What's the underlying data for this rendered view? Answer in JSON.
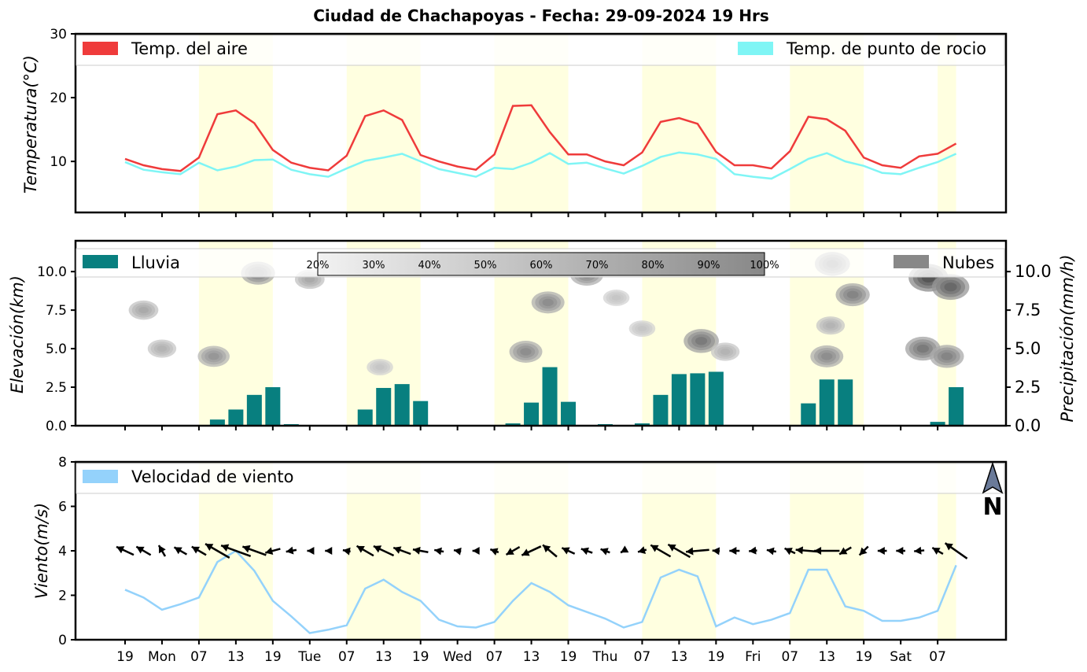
{
  "title": "Ciudad de Chachapoyas   -   Fecha: 29-09-2024 19 Hrs",
  "colors": {
    "air_temp": "#ef3b3b",
    "dew_point": "#7ff5f5",
    "rain": "#087f7f",
    "clouds": "#888888",
    "wind_speed": "#94d2fb",
    "daylight_band": "#ffffe0"
  },
  "icons": {
    "north_arrow": "north-arrow-icon"
  },
  "north_label": "N",
  "chart_data": [
    {
      "type": "line",
      "panel": "temperature",
      "ylabel": "Temperatura(°C)",
      "ylim": [
        2,
        30
      ],
      "yticks": [
        "10",
        "20",
        "30"
      ],
      "x_tick_labels": [
        "19",
        "Mon",
        "07",
        "13",
        "19",
        "Tue",
        "07",
        "13",
        "19",
        "Wed",
        "07",
        "13",
        "19",
        "Thu",
        "07",
        "13",
        "19",
        "Fri",
        "07",
        "13",
        "19",
        "Sat",
        "07"
      ],
      "grid": false,
      "legend": "top",
      "series": [
        {
          "name": "Temp. del aire",
          "values": [
            10.4,
            9.4,
            8.8,
            8.5,
            10.6,
            17.4,
            18.0,
            16.0,
            11.8,
            9.8,
            9.0,
            8.6,
            10.9,
            17.1,
            18.0,
            16.5,
            11.0,
            10.0,
            9.2,
            8.7,
            11.1,
            18.7,
            18.8,
            14.6,
            11.1,
            11.1,
            10.0,
            9.4,
            11.4,
            16.2,
            16.8,
            15.9,
            11.5,
            9.4,
            9.4,
            8.9,
            11.6,
            17.0,
            16.6,
            14.8,
            10.6,
            9.4,
            9.0,
            10.8,
            11.2,
            12.8
          ]
        },
        {
          "name": "Temp. de punto de rocio",
          "values": [
            9.9,
            8.7,
            8.3,
            8.0,
            9.8,
            8.6,
            9.2,
            10.2,
            10.3,
            8.7,
            8.0,
            7.6,
            8.9,
            10.1,
            10.6,
            11.2,
            10.0,
            8.8,
            8.2,
            7.6,
            9.0,
            8.8,
            9.8,
            11.3,
            9.6,
            9.8,
            8.9,
            8.1,
            9.3,
            10.7,
            11.4,
            11.1,
            10.4,
            8.0,
            7.6,
            7.3,
            8.8,
            10.4,
            11.3,
            10.0,
            9.3,
            8.2,
            8.0,
            9.0,
            9.9,
            11.2
          ]
        }
      ]
    },
    {
      "type": "bar",
      "panel": "rain_clouds",
      "ylabel_left": "Elevación(km)",
      "ylabel_right": "Precipitación(mm/h)",
      "ylim": [
        0,
        12
      ],
      "yticks_left": [
        "0.0",
        "2.5",
        "5.0",
        "7.5",
        "10.0"
      ],
      "yticks_right": [
        "0.0",
        "2.5",
        "5.0",
        "7.5",
        "10.0"
      ],
      "legend": "top",
      "series": [
        {
          "name": "Lluvia",
          "values": [
            0,
            0,
            0,
            0.05,
            0,
            0.4,
            1.05,
            2.0,
            2.5,
            0.1,
            0,
            0,
            0,
            1.05,
            2.45,
            2.7,
            1.6,
            0,
            0,
            0,
            0,
            0.15,
            1.5,
            3.8,
            1.55,
            0,
            0.1,
            0,
            0.15,
            2.0,
            3.35,
            3.4,
            3.5,
            0,
            0,
            0,
            0,
            1.45,
            3.0,
            3.0,
            0.05,
            0.05,
            0.05,
            0,
            0.25,
            2.5
          ]
        },
        {
          "name": "Nubes"
        }
      ],
      "cloud_cover_colorbar": [
        "20%",
        "30%",
        "40%",
        "50%",
        "60%",
        "70%",
        "80%",
        "90%",
        "100%"
      ],
      "cloud_blobs": [
        {
          "x": 7.2,
          "y": 9.9,
          "level": 0.55
        },
        {
          "x": 4.8,
          "y": 4.5,
          "level": 0.45
        },
        {
          "x": 1.0,
          "y": 7.5,
          "level": 0.35
        },
        {
          "x": 2.0,
          "y": 5.0,
          "level": 0.3
        },
        {
          "x": 10.0,
          "y": 9.5,
          "level": 0.35
        },
        {
          "x": 13.8,
          "y": 3.8,
          "level": 0.2
        },
        {
          "x": 21.7,
          "y": 4.8,
          "level": 0.5
        },
        {
          "x": 22.9,
          "y": 8.0,
          "level": 0.5
        },
        {
          "x": 25.0,
          "y": 9.8,
          "level": 0.5
        },
        {
          "x": 26.6,
          "y": 8.3,
          "level": 0.2
        },
        {
          "x": 28.0,
          "y": 6.3,
          "level": 0.2
        },
        {
          "x": 31.2,
          "y": 5.5,
          "level": 0.6
        },
        {
          "x": 32.5,
          "y": 4.8,
          "level": 0.3
        },
        {
          "x": 38.3,
          "y": 10.5,
          "level": 0.6
        },
        {
          "x": 39.4,
          "y": 8.5,
          "level": 0.55
        },
        {
          "x": 38.0,
          "y": 4.5,
          "level": 0.5
        },
        {
          "x": 38.2,
          "y": 6.5,
          "level": 0.3
        },
        {
          "x": 43.5,
          "y": 9.6,
          "level": 0.8
        },
        {
          "x": 44.7,
          "y": 9.0,
          "level": 0.7
        },
        {
          "x": 43.2,
          "y": 5.0,
          "level": 0.6
        },
        {
          "x": 44.5,
          "y": 4.5,
          "level": 0.55
        }
      ]
    },
    {
      "type": "line",
      "panel": "wind",
      "ylabel": "Viento(m/s)",
      "ylim": [
        0,
        8
      ],
      "yticks": [
        "0",
        "2",
        "4",
        "6",
        "8"
      ],
      "legend": "top-left",
      "series": [
        {
          "name": "Velocidad de viento",
          "values": [
            2.25,
            1.9,
            1.35,
            1.6,
            1.9,
            3.5,
            4.0,
            3.1,
            1.75,
            1.05,
            0.3,
            0.45,
            0.65,
            2.3,
            2.7,
            2.15,
            1.75,
            0.9,
            0.6,
            0.55,
            0.8,
            1.75,
            2.55,
            2.15,
            1.55,
            1.25,
            0.95,
            0.55,
            0.8,
            2.8,
            3.15,
            2.85,
            0.6,
            1.0,
            0.7,
            0.9,
            1.2,
            3.15,
            3.15,
            1.5,
            1.3,
            0.85,
            0.85,
            1.0,
            1.3,
            3.35
          ]
        }
      ],
      "wind_arrows": {
        "speed_mps": [
          2.25,
          1.9,
          1.35,
          1.6,
          1.9,
          3.5,
          4.0,
          3.1,
          1.75,
          1.05,
          0.3,
          0.45,
          0.65,
          2.3,
          2.7,
          2.15,
          1.75,
          0.9,
          0.6,
          0.55,
          0.8,
          1.75,
          2.55,
          2.15,
          1.55,
          1.25,
          0.95,
          0.55,
          0.8,
          2.8,
          3.15,
          2.85,
          0.6,
          1.0,
          0.7,
          0.9,
          1.2,
          3.15,
          3.15,
          1.5,
          1.3,
          0.85,
          0.85,
          1.0,
          1.3,
          3.35
        ],
        "direction_to_deg": [
          295,
          300,
          330,
          300,
          300,
          300,
          290,
          290,
          255,
          260,
          270,
          270,
          280,
          300,
          295,
          290,
          280,
          280,
          280,
          270,
          290,
          240,
          245,
          310,
          295,
          290,
          290,
          240,
          255,
          300,
          300,
          265,
          275,
          270,
          265,
          280,
          295,
          275,
          270,
          240,
          225,
          270,
          270,
          265,
          300,
          305
        ]
      }
    }
  ]
}
